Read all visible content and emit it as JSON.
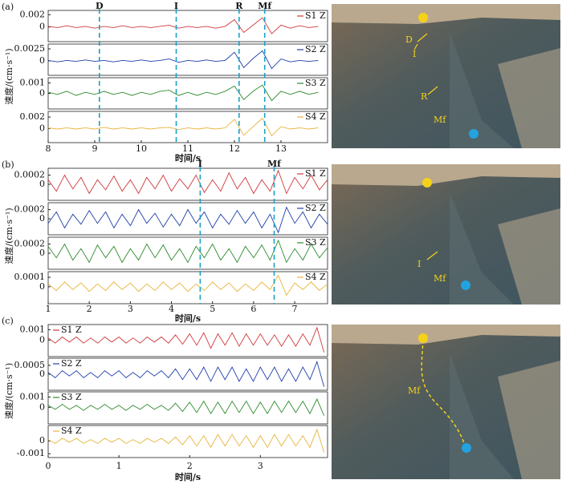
{
  "chart_data": [
    {
      "type": "line",
      "label": "(a)",
      "xlabel": "时间/s",
      "ylabel": "速度/(cm·s⁻¹)",
      "legend": "upper right",
      "xlim": [
        8,
        14
      ],
      "xticks": [
        8,
        9,
        10,
        11,
        12,
        13
      ],
      "markers": [
        {
          "label": "D",
          "x": 9.1
        },
        {
          "label": "I",
          "x": 10.75
        },
        {
          "label": "R",
          "x": 12.1
        },
        {
          "label": "Mf",
          "x": 12.65
        }
      ],
      "photo_labels": [
        "D",
        "I",
        "R",
        "Mf"
      ],
      "x": [
        8.0,
        8.2,
        8.4,
        8.6,
        8.8,
        9.0,
        9.2,
        9.4,
        9.6,
        9.8,
        10.0,
        10.2,
        10.4,
        10.6,
        10.8,
        11.0,
        11.2,
        11.4,
        11.6,
        11.8,
        12.0,
        12.2,
        12.4,
        12.6,
        12.8,
        13.0,
        13.2,
        13.4,
        13.6,
        13.8
      ],
      "panels": [
        {
          "name": "S1 Z",
          "color": "#d0393b",
          "ylim": [
            -0.0024,
            0.0027
          ],
          "yticks": [
            0.002,
            0
          ],
          "values": [
            0.0001,
            -0.0001,
            0.0002,
            -0.0001,
            0.0001,
            -0.0002,
            0.0001,
            -0.0001,
            0.0002,
            -0.0001,
            0.0001,
            -0.0001,
            0.0001,
            0.0003,
            -0.0002,
            0.0001,
            -0.0001,
            0.0001,
            -0.0002,
            0.0001,
            0.0012,
            -0.0009,
            0.0003,
            0.0015,
            -0.0011,
            0.0003,
            -0.0002,
            0.0002,
            -0.0001,
            0.0001
          ]
        },
        {
          "name": "S2 Z",
          "color": "#1f3fa8",
          "ylim": [
            -0.003,
            0.0035
          ],
          "yticks": [
            0.0025,
            0
          ],
          "values": [
            0.0001,
            -0.0002,
            0.0001,
            -0.0001,
            0.0002,
            -0.0001,
            0.0001,
            -0.0002,
            0.0001,
            -0.0001,
            0.0002,
            -0.0001,
            0.0001,
            0.0004,
            -0.0003,
            0.0001,
            -0.0001,
            0.0002,
            -0.0001,
            0.0001,
            0.0018,
            -0.0014,
            0.0005,
            0.0021,
            -0.0016,
            0.0004,
            -0.0002,
            0.0001,
            -0.0001,
            0.0001
          ]
        },
        {
          "name": "S3 Z",
          "color": "#2e8b2e",
          "ylim": [
            -0.0015,
            0.0015
          ],
          "yticks": [
            0.001,
            0
          ],
          "values": [
            0.0001,
            -0.0001,
            0.0002,
            -0.0002,
            0.0001,
            -0.0001,
            0.0002,
            -0.0001,
            0.0001,
            -0.0002,
            0.0001,
            -0.0001,
            0.0002,
            0.0003,
            -0.0002,
            0.0001,
            -0.0002,
            0.0001,
            -0.0001,
            0.0002,
            0.0007,
            -0.0006,
            0.0002,
            0.0008,
            -0.0007,
            0.0002,
            -0.0001,
            0.0002,
            -0.0001,
            0.0001
          ]
        },
        {
          "name": "S4 Z",
          "color": "#e8b43a",
          "ylim": [
            -0.0025,
            0.003
          ],
          "yticks": [
            0.002,
            0
          ],
          "values": [
            0.0001,
            -0.0001,
            0.0001,
            -0.0001,
            0.0001,
            -0.0001,
            0.0002,
            -0.0001,
            0.0001,
            -0.0001,
            0.0001,
            -0.0001,
            0.0001,
            0.0002,
            -0.0002,
            0.0001,
            -0.0001,
            0.0001,
            -0.0001,
            0.0001,
            0.0016,
            -0.0012,
            0.0003,
            0.0018,
            -0.0013,
            0.0003,
            -0.0001,
            0.0001,
            -0.0001,
            0.0001
          ]
        }
      ]
    },
    {
      "type": "line",
      "label": "(b)",
      "xlabel": "时间/s",
      "ylabel": "速度/(cm·s⁻¹)",
      "legend": "upper right",
      "xlim": [
        1,
        7.8
      ],
      "xticks": [
        1,
        2,
        3,
        4,
        5,
        6,
        7
      ],
      "markers": [
        {
          "label": "I",
          "x": 4.7
        },
        {
          "label": "Mf",
          "x": 6.5
        }
      ],
      "photo_labels": [
        "I",
        "Mf"
      ],
      "x": [
        1.0,
        1.2,
        1.4,
        1.6,
        1.8,
        2.0,
        2.2,
        2.4,
        2.6,
        2.8,
        3.0,
        3.2,
        3.4,
        3.6,
        3.8,
        4.0,
        4.2,
        4.4,
        4.6,
        4.8,
        5.0,
        5.2,
        5.4,
        5.6,
        5.8,
        6.0,
        6.2,
        6.4,
        6.6,
        6.8,
        7.0,
        7.2,
        7.4,
        7.6,
        7.8
      ],
      "panels": [
        {
          "name": "S1 Z",
          "color": "#d0393b",
          "ylim": [
            -0.00035,
            0.00035
          ],
          "yticks": [
            0.0002,
            0
          ],
          "values": [
            0.0001,
            -0.00015,
            0.0002,
            -0.0001,
            0.00015,
            -0.0002,
            0.0001,
            -0.00012,
            0.00018,
            -0.00015,
            0.0001,
            -0.0002,
            0.00015,
            -0.0001,
            0.0002,
            -0.00015,
            0.00012,
            -0.0001,
            0.0002,
            -0.00018,
            0.0001,
            -0.00015,
            0.00025,
            -0.0001,
            0.00015,
            -0.0002,
            0.0001,
            -0.00015,
            0.0003,
            -0.0002,
            0.00015,
            -0.0001,
            0.0002,
            -0.00012,
            0.0001
          ]
        },
        {
          "name": "S2 Z",
          "color": "#1f3fa8",
          "ylim": [
            -0.00035,
            0.00035
          ],
          "yticks": [
            0.0002,
            0
          ],
          "values": [
            -0.0001,
            0.00015,
            -0.0002,
            0.0001,
            -0.00012,
            0.00018,
            -0.0001,
            0.00015,
            -0.0002,
            0.0001,
            -0.00015,
            0.0002,
            -0.0001,
            0.00012,
            -0.00018,
            0.0001,
            -0.00015,
            0.0002,
            -0.0001,
            0.00015,
            -0.0002,
            0.0001,
            -0.00012,
            0.00018,
            -0.0001,
            0.00015,
            -0.0002,
            0.0001,
            -0.0003,
            0.00025,
            -0.0001,
            0.00015,
            -0.0002,
            0.0001,
            -0.00012
          ]
        },
        {
          "name": "S3 Z",
          "color": "#2e8b2e",
          "ylim": [
            -0.00035,
            0.00035
          ],
          "yticks": [
            0.0002,
            0
          ],
          "values": [
            0.00015,
            -0.0001,
            0.0002,
            -0.00015,
            0.0001,
            -0.0002,
            0.00018,
            -0.0001,
            0.00015,
            -0.0002,
            0.0001,
            -0.00015,
            0.0002,
            -0.0001,
            0.00018,
            -0.00015,
            0.0001,
            -0.0002,
            0.00015,
            -0.0001,
            0.0002,
            -0.00015,
            0.0001,
            -0.0002,
            0.00015,
            -0.0001,
            0.00018,
            -0.00015,
            0.00028,
            -0.0002,
            0.0001,
            -0.00015,
            0.0002,
            -0.0001,
            0.00012
          ]
        },
        {
          "name": "S4 Z",
          "color": "#e8b43a",
          "ylim": [
            -0.00018,
            0.00016
          ],
          "yticks": [
            0.0001,
            0
          ],
          "values": [
            3e-05,
            -4e-05,
            5e-05,
            -3e-05,
            4e-05,
            -5e-05,
            3e-05,
            -4e-05,
            5e-05,
            -3e-05,
            4e-05,
            -5e-05,
            3e-05,
            -4e-05,
            5e-05,
            -3e-05,
            4e-05,
            -5e-05,
            3e-05,
            -4e-05,
            5e-05,
            -3e-05,
            4e-05,
            -5e-05,
            3e-05,
            -4e-05,
            5e-05,
            -3e-05,
            0.00012,
            -9e-05,
            4e-05,
            -3e-05,
            5e-05,
            -4e-05,
            3e-05
          ]
        }
      ]
    },
    {
      "type": "line",
      "label": "(c)",
      "xlabel": "时间/s",
      "ylabel": "速度/(cm·s⁻¹)",
      "legend": "upper left",
      "xlim": [
        0,
        3.95
      ],
      "xticks": [
        0,
        1,
        2,
        3
      ],
      "markers": [],
      "photo_labels": [
        "Mf"
      ],
      "x": [
        0.0,
        0.1,
        0.2,
        0.3,
        0.4,
        0.5,
        0.6,
        0.7,
        0.8,
        0.9,
        1.0,
        1.1,
        1.2,
        1.3,
        1.4,
        1.5,
        1.6,
        1.7,
        1.8,
        1.9,
        2.0,
        2.1,
        2.2,
        2.3,
        2.4,
        2.5,
        2.6,
        2.7,
        2.8,
        2.9,
        3.0,
        3.1,
        3.2,
        3.3,
        3.4,
        3.5,
        3.6,
        3.7,
        3.8,
        3.9
      ],
      "panels": [
        {
          "name": "S1 Z",
          "color": "#d0393b",
          "ylim": [
            -0.0016,
            0.0015
          ],
          "yticks": [
            0.001,
            0
          ],
          "values": [
            0.0002,
            -0.0003,
            0.0003,
            -0.0002,
            0.0003,
            -0.0003,
            0.0002,
            -0.0003,
            0.0003,
            -0.0002,
            0.0003,
            -0.0003,
            0.0002,
            -0.0003,
            0.0003,
            -0.0002,
            0.0003,
            -0.0003,
            0.0005,
            -0.0004,
            0.0006,
            -0.0005,
            0.0007,
            -0.0008,
            0.0006,
            -0.0005,
            0.0007,
            -0.0006,
            0.0006,
            -0.0005,
            0.0006,
            -0.0005,
            0.0005,
            -0.0006,
            0.0005,
            -0.0006,
            0.0006,
            -0.0005,
            0.0012,
            -0.0012
          ]
        },
        {
          "name": "S2 Z",
          "color": "#1f3fa8",
          "ylim": [
            -0.0009,
            0.0009
          ],
          "yticks": [
            0.0005,
            0
          ],
          "values": [
            0.0001,
            -0.0002,
            0.0002,
            -0.0001,
            0.0002,
            -0.0002,
            0.0001,
            -0.0002,
            0.0002,
            -0.0001,
            0.0002,
            -0.0002,
            0.0001,
            -0.0002,
            0.0002,
            -0.0001,
            0.0002,
            -0.0002,
            0.0003,
            -0.0003,
            0.0003,
            -0.0003,
            0.0004,
            -0.0004,
            0.0004,
            -0.0003,
            0.0004,
            -0.0004,
            0.0003,
            -0.0004,
            0.0004,
            -0.0003,
            0.0004,
            -0.0004,
            0.0003,
            -0.0004,
            0.0004,
            -0.0003,
            0.0007,
            -0.0007
          ]
        },
        {
          "name": "S3 Z",
          "color": "#2e8b2e",
          "ylim": [
            -0.0016,
            0.0015
          ],
          "yticks": [
            0.001,
            0
          ],
          "values": [
            0.0002,
            -0.0002,
            0.0003,
            -0.0002,
            0.0002,
            -0.0003,
            0.0002,
            -0.0002,
            0.0003,
            -0.0002,
            0.0002,
            -0.0003,
            0.0002,
            -0.0002,
            0.0003,
            -0.0002,
            0.0002,
            -0.0003,
            0.0004,
            -0.0004,
            0.0005,
            -0.0005,
            0.0006,
            -0.0006,
            0.0005,
            -0.0006,
            0.0006,
            -0.0005,
            0.0006,
            -0.0006,
            0.0005,
            -0.0006,
            0.0006,
            -0.0005,
            0.0006,
            -0.0005,
            0.0006,
            -0.0006,
            0.0008,
            -0.0008
          ]
        },
        {
          "name": "S4 Z",
          "color": "#e8b43a",
          "ylim": [
            -0.0013,
            0.0012
          ],
          "yticks": [
            0,
            -0.001
          ],
          "values": [
            0.0001,
            -0.0002,
            0.0002,
            -0.0001,
            0.0002,
            -0.0002,
            0.0001,
            -0.0002,
            0.0002,
            -0.0001,
            0.0002,
            -0.0002,
            0.0001,
            -0.0002,
            0.0002,
            -0.0001,
            0.0002,
            -0.0002,
            0.0003,
            -0.0003,
            0.0004,
            -0.0004,
            0.0004,
            -0.0005,
            0.0005,
            -0.0004,
            0.0005,
            -0.0004,
            0.0004,
            -0.0005,
            0.0004,
            -0.0005,
            0.0005,
            -0.0004,
            0.0005,
            -0.0004,
            0.0004,
            -0.0005,
            0.0009,
            -0.0009
          ]
        }
      ]
    }
  ]
}
